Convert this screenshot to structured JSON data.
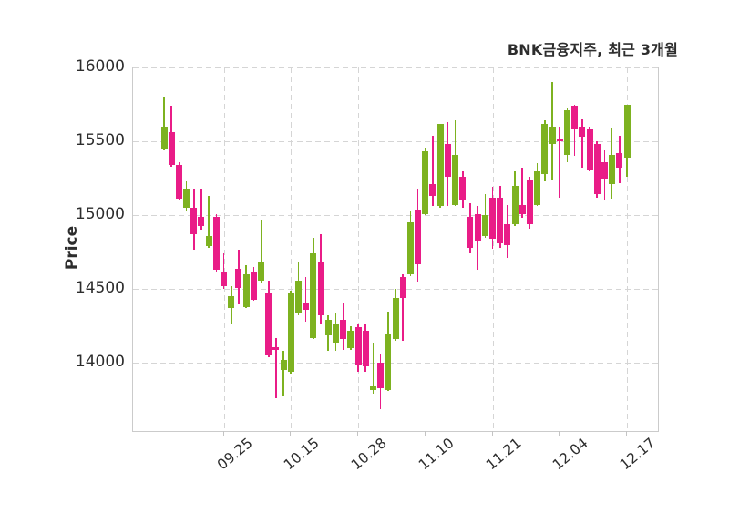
{
  "title": "BNK금융지주, 최근 3개월",
  "y_axis_label": "Price",
  "chart_data": {
    "type": "candlestick",
    "title": "BNK금융지주, 최근 3개월",
    "ylabel": "Price",
    "ylim": [
      13540,
      16000
    ],
    "y_ticks": [
      14000,
      14500,
      15000,
      15500,
      16000
    ],
    "x_tick_labels": [
      "09.25",
      "10.15",
      "10.28",
      "11.10",
      "11.21",
      "12.04",
      "12.17"
    ],
    "x_tick_candle_indices": [
      8,
      17,
      26,
      35,
      44,
      53,
      62
    ],
    "grid": true,
    "up_color": "#7db220",
    "down_color": "#e91c87",
    "grid_color": "#d5d5d5",
    "spine_color": "#cbcbcb",
    "text_color": "#2d2d2d",
    "candles_format": [
      "open",
      "high",
      "low",
      "close"
    ],
    "candles": [
      [
        15450,
        15800,
        15440,
        15600
      ],
      [
        15560,
        15740,
        15330,
        15340
      ],
      [
        15340,
        15360,
        15100,
        15110
      ],
      [
        15050,
        15230,
        15030,
        15180
      ],
      [
        15050,
        15180,
        14770,
        14870
      ],
      [
        14990,
        15180,
        14900,
        14930
      ],
      [
        14790,
        15130,
        14780,
        14860
      ],
      [
        14990,
        15010,
        14620,
        14630
      ],
      [
        14610,
        14740,
        14500,
        14520
      ],
      [
        14370,
        14520,
        14270,
        14450
      ],
      [
        14640,
        14770,
        14400,
        14510
      ],
      [
        14380,
        14660,
        14370,
        14600
      ],
      [
        14620,
        14650,
        14420,
        14430
      ],
      [
        14560,
        14970,
        14540,
        14680
      ],
      [
        14480,
        14560,
        14040,
        14050
      ],
      [
        14110,
        14170,
        13760,
        14090
      ],
      [
        13950,
        14080,
        13780,
        14020
      ],
      [
        13940,
        14490,
        13930,
        14480
      ],
      [
        14340,
        14680,
        14320,
        14560
      ],
      [
        14410,
        14580,
        14280,
        14360
      ],
      [
        14170,
        14850,
        14160,
        14740
      ],
      [
        14680,
        14870,
        14260,
        14320
      ],
      [
        14190,
        14320,
        14080,
        14290
      ],
      [
        14140,
        14340,
        14080,
        14270
      ],
      [
        14290,
        14410,
        14090,
        14160
      ],
      [
        14100,
        14250,
        14090,
        14220
      ],
      [
        14240,
        14260,
        13940,
        13990
      ],
      [
        14220,
        14270,
        13940,
        13980
      ],
      [
        13820,
        14140,
        13790,
        13840
      ],
      [
        14000,
        14060,
        13690,
        13830
      ],
      [
        13820,
        14350,
        13810,
        14200
      ],
      [
        14160,
        14500,
        14150,
        14440
      ],
      [
        14580,
        14600,
        14150,
        14440
      ],
      [
        14600,
        15030,
        14590,
        14950
      ],
      [
        15040,
        15180,
        14550,
        14670
      ],
      [
        15010,
        15460,
        15000,
        15430
      ],
      [
        15210,
        15540,
        15060,
        15130
      ],
      [
        15060,
        15620,
        15050,
        15620
      ],
      [
        15480,
        15630,
        15060,
        15260
      ],
      [
        15070,
        15640,
        15060,
        15410
      ],
      [
        15260,
        15300,
        15050,
        15100
      ],
      [
        14990,
        15080,
        14740,
        14780
      ],
      [
        15010,
        15060,
        14630,
        14830
      ],
      [
        14860,
        15140,
        14850,
        15000
      ],
      [
        15120,
        15190,
        14770,
        14840
      ],
      [
        15120,
        15200,
        14780,
        14810
      ],
      [
        14940,
        15070,
        14710,
        14800
      ],
      [
        14940,
        15300,
        14930,
        15200
      ],
      [
        15070,
        15320,
        14980,
        15010
      ],
      [
        15240,
        15260,
        14910,
        14940
      ],
      [
        15070,
        15350,
        15060,
        15300
      ],
      [
        15280,
        15640,
        15230,
        15620
      ],
      [
        15480,
        15900,
        15240,
        15600
      ],
      [
        15510,
        15600,
        15120,
        15500
      ],
      [
        15410,
        15720,
        15360,
        15710
      ],
      [
        15740,
        15750,
        15400,
        15580
      ],
      [
        15600,
        15650,
        15320,
        15530
      ],
      [
        15580,
        15600,
        15300,
        15310
      ],
      [
        15480,
        15500,
        15120,
        15140
      ],
      [
        15360,
        15440,
        15100,
        15250
      ],
      [
        15210,
        15590,
        15110,
        15410
      ],
      [
        15420,
        15540,
        15220,
        15320
      ],
      [
        15390,
        15750,
        15260,
        15750
      ]
    ]
  }
}
